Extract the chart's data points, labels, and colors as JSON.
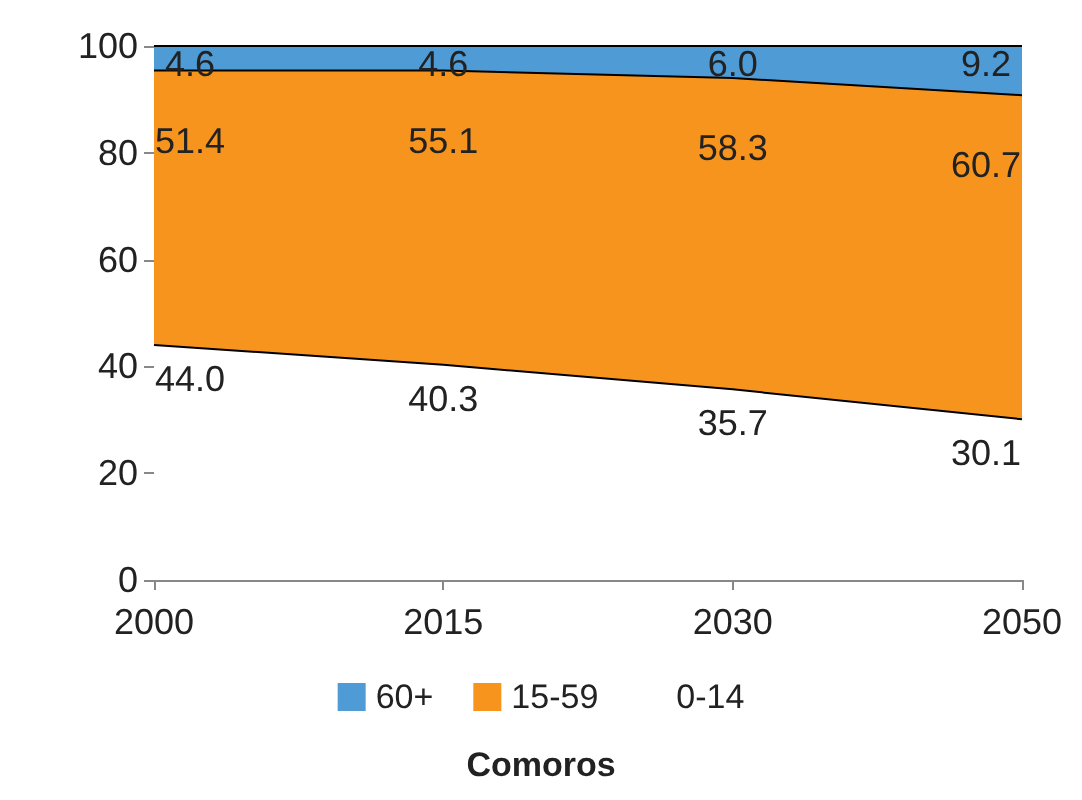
{
  "chart_data": {
    "type": "area",
    "title": "Comoros",
    "categories": [
      "2000",
      "2015",
      "2030",
      "2050"
    ],
    "stacked": true,
    "series": [
      {
        "name": "0-14",
        "color": "#ffffff",
        "values": [
          44.0,
          40.3,
          35.7,
          30.1
        ],
        "value_labels": [
          "44.0",
          "40.3",
          "35.7",
          "30.1"
        ]
      },
      {
        "name": "15-59",
        "color": "#f7941d",
        "values": [
          51.4,
          55.1,
          58.3,
          60.7
        ],
        "value_labels": [
          "51.4",
          "55.1",
          "58.3",
          "60.7"
        ]
      },
      {
        "name": "60+",
        "color": "#4f9bd5",
        "values": [
          4.6,
          4.6,
          6.0,
          9.2
        ],
        "value_labels": [
          "4.6",
          "4.6",
          "6.0",
          "9.2"
        ]
      }
    ],
    "ylim": [
      0,
      100
    ],
    "yticks": [
      0,
      20,
      40,
      60,
      80,
      100
    ],
    "legend": "bottom"
  }
}
